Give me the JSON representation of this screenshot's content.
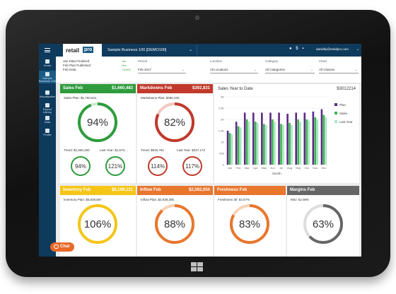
{
  "app": {
    "logo_text": "retail",
    "logo_pro": "pro",
    "business": "Sample Business 100 [DEMO100]",
    "user_email": "danielly@retailpro.com",
    "chat_label": "Chat"
  },
  "sidebar": {
    "items": [
      {
        "label": "Home",
        "icon": "home-icon"
      },
      {
        "label": "Sample Business 100",
        "icon": "store-icon"
      },
      {
        "label": "Visualization",
        "icon": "chart-icon"
      },
      {
        "label": "Report Library",
        "icon": "book-icon"
      },
      {
        "label": "Data",
        "icon": "cloud-icon"
      },
      {
        "label": "Profile",
        "icon": "user-icon"
      }
    ]
  },
  "status": {
    "lines": [
      "Jan Data Finalized",
      "Feb Plan Published",
      "Feb Data"
    ],
    "values": [
      "Yes",
      "Yes",
      "+100%"
    ]
  },
  "filters": {
    "period_label": "Period",
    "period_value": "Feb 2017",
    "location_label": "Location",
    "location_value": "All Locations",
    "category_label": "Category",
    "category_value": "All Categories",
    "class_label": "Class",
    "class_value": "All Classes"
  },
  "cards": {
    "sales": {
      "title": "Sales Feb",
      "value": "$1,660,483",
      "sub": "Sales Plan: $1,760,621",
      "pct": "94%",
      "trend_label": "Trend: $1,660,483",
      "ly_label": "Last Year: $1,570,...",
      "trend_pct": "94%",
      "ly_pct": "121%",
      "color": "#2e9c3d"
    },
    "markdowns": {
      "title": "Markdowns Feb",
      "value": "$392,831",
      "sub": "Markdowns Plan: $480,100",
      "pct": "82%",
      "trend_label": "Trend: $546,791",
      "ly_label": "Last Year: $337,172",
      "trend_pct": "114%",
      "ly_pct": "117%",
      "color": "#c0392b"
    },
    "inventory": {
      "title": "Inventory Feb",
      "value": "$6,169,131",
      "sub": "Inventory Plan: $5,839,567",
      "pct": "106%",
      "color": "#f5c518"
    },
    "inflow": {
      "title": "Inflow Feb",
      "value": "$2,592,054",
      "sub": "Inflow Plan: $2,939,385",
      "pct": "88%",
      "color": "#e8762d"
    },
    "freshness": {
      "title": "Freshness Feb",
      "sub": "Freshness 30: 82.57%",
      "pct": "83%",
      "color": "#e8762d"
    },
    "margins": {
      "title": "Margins Feb",
      "sub": "IMU: 62.08%",
      "pct": "63%",
      "color": "#666666"
    }
  },
  "chart_data": {
    "type": "bar",
    "title": "Sales Year to Date",
    "total": "$3012214",
    "xlabel": "Month",
    "ylabel": "",
    "ylim": [
      0,
      3000
    ],
    "yticks": [
      "0",
      "500",
      "1K",
      "1.5K",
      "2K",
      "2.5K",
      "3K"
    ],
    "categories": [
      "Jan",
      "Feb",
      "Mar",
      "Apr",
      "May",
      "Jun",
      "Jul",
      "Aug",
      "Sep",
      "Oct",
      "Nov",
      "Dec"
    ],
    "series": [
      {
        "name": "Plan",
        "color": "#5b2a86",
        "values": [
          1500,
          1900,
          2300,
          2300,
          2300,
          2300,
          2300,
          2250,
          2300,
          2300,
          2350,
          2450
        ]
      },
      {
        "name": "Sales",
        "color": "#3cb44b",
        "values": [
          1400,
          1700,
          2000,
          1900,
          1800,
          2000,
          1800,
          1850,
          2000,
          2000,
          2100,
          2200
        ]
      },
      {
        "name": "Last Year",
        "color": "#a8e6c4",
        "values": [
          1350,
          1650,
          1900,
          1850,
          1750,
          1900,
          1750,
          1750,
          1900,
          1950,
          2000,
          2100
        ]
      }
    ],
    "legend": "top-right"
  }
}
